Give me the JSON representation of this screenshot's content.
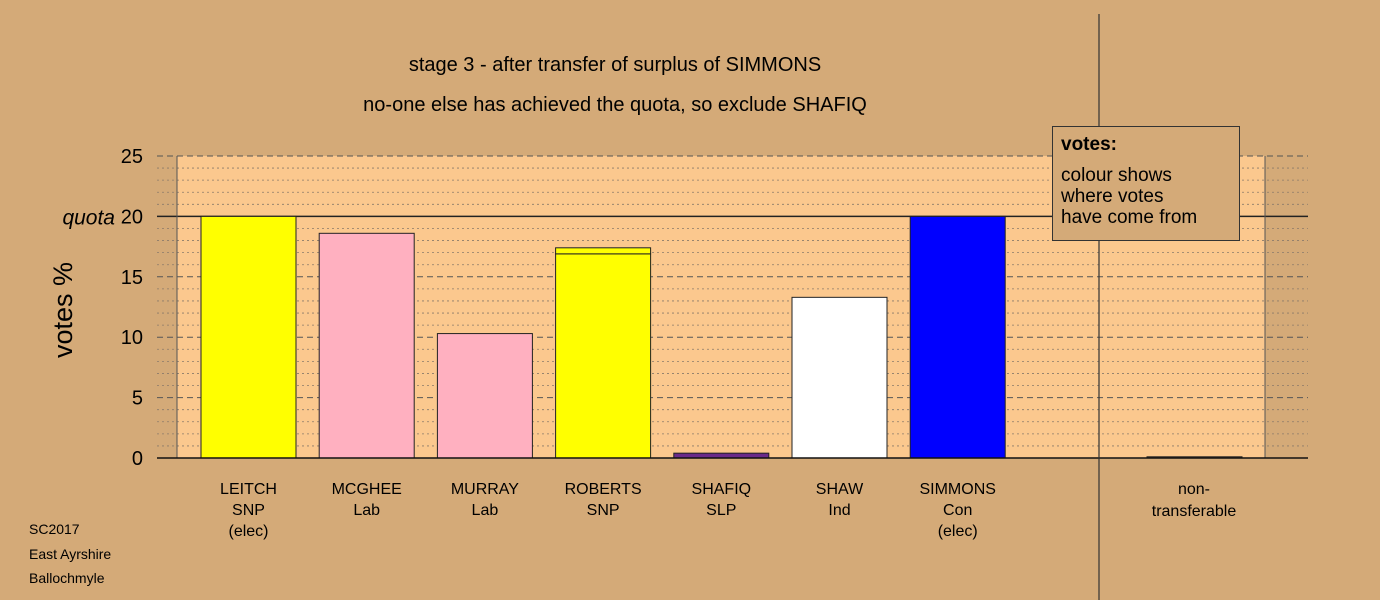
{
  "title_line1": "stage 3 - after transfer of surplus of SIMMONS",
  "title_line2": "no-one else has achieved the quota, so exclude SHAFIQ",
  "footer": [
    "SC2017",
    "East Ayrshire",
    "Ballochmyle"
  ],
  "legend": {
    "title": "votes:",
    "lines": [
      "colour shows",
      "where votes",
      "have come from"
    ]
  },
  "quota_label": "quota",
  "colors": {
    "background": "#d4aa78",
    "plot_area": "#fbc88e",
    "SNP": "#ffff00",
    "Lab": "#ffb0c0",
    "SLP": "#6a2a8a",
    "Ind": "#ffffff",
    "Con": "#0000ff",
    "nontransferable": "#6a4a2a"
  },
  "chart_data": {
    "type": "bar",
    "ylabel": "votes %",
    "ylim": [
      0,
      25
    ],
    "yticks": [
      0,
      5,
      10,
      15,
      20,
      25
    ],
    "quota": 20,
    "grid": true,
    "legend_placement": "top-right",
    "categories": [
      {
        "name": "LEITCH",
        "party": "SNP",
        "note": "(elec)",
        "segments": [
          {
            "from": "SNP",
            "value": 20.0
          }
        ]
      },
      {
        "name": "MCGHEE",
        "party": "Lab",
        "note": "",
        "segments": [
          {
            "from": "Lab",
            "value": 18.6
          }
        ]
      },
      {
        "name": "MURRAY",
        "party": "Lab",
        "note": "",
        "segments": [
          {
            "from": "Lab",
            "value": 10.3
          }
        ]
      },
      {
        "name": "ROBERTS",
        "party": "SNP",
        "note": "",
        "segments": [
          {
            "from": "SNP",
            "value": 16.9
          },
          {
            "from": "SNP",
            "value": 0.5
          }
        ]
      },
      {
        "name": "SHAFIQ",
        "party": "SLP",
        "note": "",
        "segments": [
          {
            "from": "SLP",
            "value": 0.4
          }
        ]
      },
      {
        "name": "SHAW",
        "party": "Ind",
        "note": "",
        "segments": [
          {
            "from": "Ind",
            "value": 13.3
          }
        ]
      },
      {
        "name": "SIMMONS",
        "party": "Con",
        "note": "(elec)",
        "segments": [
          {
            "from": "Con",
            "value": 20.0
          }
        ]
      }
    ],
    "nontransferable": {
      "label_line1": "non-",
      "label_line2": "transferable",
      "value": 0.1
    }
  }
}
